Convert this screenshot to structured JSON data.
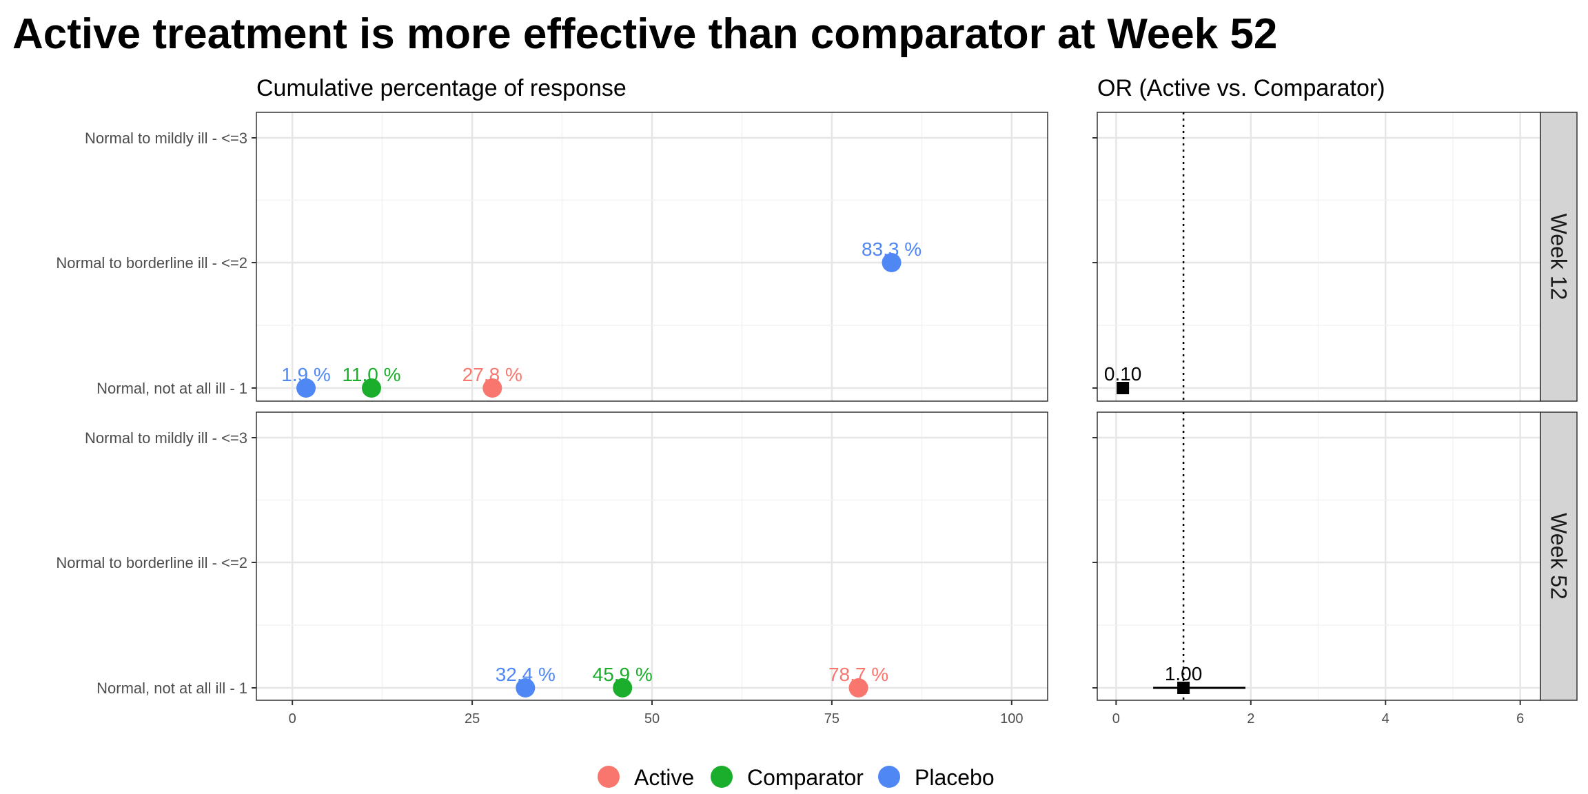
{
  "title": "Active treatment is more effective than comparator at Week 52",
  "colors": {
    "Active": "#F8766D",
    "Comparator": "#1AAE2C",
    "Placebo": "#4F87F5",
    "or_marker": "#000000",
    "strip_bg": "#D4D4D4"
  },
  "chart_data": [
    {
      "type": "scatter",
      "subtitle": "Cumulative percentage of response",
      "y_categories": [
        "Normal, not at all ill -   1",
        "Normal to borderline ill - <=2",
        "Normal to mildly ill - <=3"
      ],
      "xlim": [
        -5,
        105
      ],
      "x_ticks": [
        0,
        25,
        50,
        75,
        100
      ],
      "grid": true,
      "facets": [
        {
          "strip": "Week 12",
          "points": [
            {
              "group": "Placebo",
              "category": 0,
              "x": 1.9,
              "label": "1.9 %"
            },
            {
              "group": "Comparator",
              "category": 0,
              "x": 11.0,
              "label": "11.0 %"
            },
            {
              "group": "Active",
              "category": 0,
              "x": 27.8,
              "label": "27.8 %"
            },
            {
              "group": "Placebo",
              "category": 1,
              "x": 83.3,
              "label": "83.3 %"
            }
          ]
        },
        {
          "strip": "Week 52",
          "points": [
            {
              "group": "Placebo",
              "category": 0,
              "x": 32.4,
              "label": "32.4 %"
            },
            {
              "group": "Comparator",
              "category": 0,
              "x": 45.9,
              "label": "45.9 %"
            },
            {
              "group": "Active",
              "category": 0,
              "x": 78.7,
              "label": "78.7 %"
            }
          ]
        }
      ]
    },
    {
      "type": "forest",
      "subtitle": "OR (Active vs. Comparator)",
      "xlim": [
        -0.28,
        6.3
      ],
      "x_ticks": [
        0,
        2,
        4,
        6
      ],
      "reference_line": 1,
      "grid": true,
      "facets": [
        {
          "strip": "Week 12",
          "category": 0,
          "or": 0.1,
          "label": "0.10",
          "ci": null
        },
        {
          "strip": "Week 52",
          "category": 0,
          "or": 1.0,
          "label": "1.00",
          "ci": [
            0.55,
            1.92
          ]
        }
      ]
    }
  ],
  "legend": {
    "position": "bottom",
    "items": [
      "Active",
      "Comparator",
      "Placebo"
    ]
  }
}
